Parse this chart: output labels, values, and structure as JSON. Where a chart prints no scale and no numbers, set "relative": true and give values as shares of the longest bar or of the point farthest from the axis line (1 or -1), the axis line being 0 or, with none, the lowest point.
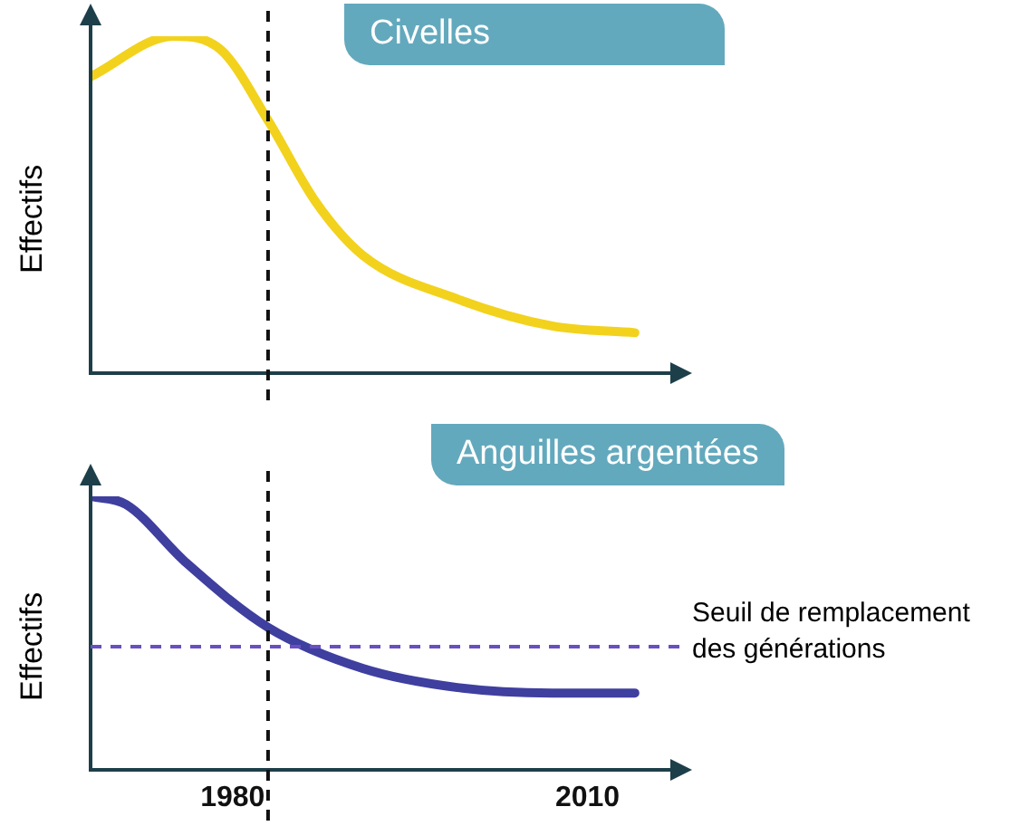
{
  "chart_data": [
    {
      "type": "line",
      "title": "Civelles",
      "ylabel": "Effectifs",
      "relative": true,
      "tick_labels": false,
      "xlim": [
        1968,
        2017
      ],
      "x": [
        1968,
        1975,
        1979,
        1983,
        1987,
        1991,
        1999,
        2007,
        2014
      ],
      "series": [
        {
          "color": "#f2d21c",
          "values": [
            0.88,
            1,
            0.96,
            0.75,
            0.51,
            0.35,
            0.22,
            0.14,
            0.12
          ]
        }
      ],
      "ref_lines": [
        {
          "axis": "x",
          "value": 1983,
          "color": "#111111",
          "line_style": "dashed"
        }
      ],
      "grid": false,
      "legend": false,
      "marker": "none"
    },
    {
      "type": "line",
      "title": "Anguilles argentées",
      "ylabel": "Effectifs",
      "relative": true,
      "tick_labels": "x",
      "xlim": [
        1968,
        2017
      ],
      "xticks": [
        1980,
        2010
      ],
      "x": [
        1968,
        1971,
        1976,
        1983,
        1991,
        1999,
        2007,
        2014
      ],
      "series": [
        {
          "color": "#3f3fa0",
          "values": [
            1,
            0.97,
            0.76,
            0.52,
            0.37,
            0.3,
            0.28,
            0.28
          ]
        }
      ],
      "ref_lines": [
        {
          "axis": "x",
          "value": 1983,
          "color": "#111111",
          "line_style": "dashed"
        },
        {
          "axis": "y",
          "value": 0.45,
          "label": "Seuil de remplacement des générations",
          "color": "#6a4fc0",
          "line_style": "dashed"
        }
      ],
      "grid": false,
      "legend": false,
      "marker": "none"
    }
  ]
}
